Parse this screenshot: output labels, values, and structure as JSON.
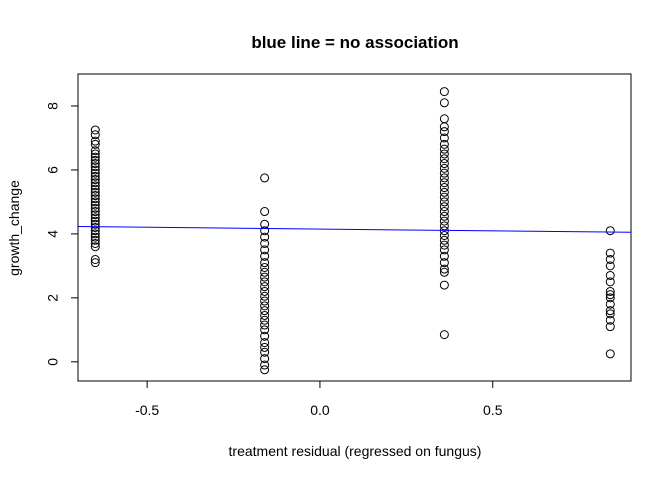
{
  "chart_data": {
    "type": "scatter",
    "title": "blue line = no association",
    "xlabel": "treatment residual (regressed on fungus)",
    "ylabel": "growth_change",
    "xlim": [
      -0.7,
      0.9
    ],
    "ylim": [
      -0.6,
      9.0
    ],
    "x_ticks": [
      -0.5,
      0.0,
      0.5
    ],
    "x_tick_labels": [
      "-0.5",
      "0.0",
      "0.5"
    ],
    "y_ticks": [
      0,
      2,
      4,
      6,
      8
    ],
    "y_tick_labels": [
      "0",
      "2",
      "4",
      "6",
      "8"
    ],
    "grid": false,
    "marker": "open-circle",
    "line_color": "#0000ff",
    "line": {
      "x": [
        -0.7,
        0.9
      ],
      "y": [
        4.23,
        4.05
      ]
    },
    "groups": [
      {
        "x": -0.65,
        "y": [
          3.1,
          3.2,
          3.6,
          3.7,
          3.8,
          3.9,
          4.0,
          4.1,
          4.2,
          4.3,
          4.4,
          4.5,
          4.6,
          4.7,
          4.8,
          4.9,
          5.0,
          5.1,
          5.2,
          5.3,
          5.4,
          5.5,
          5.6,
          5.7,
          5.8,
          5.9,
          6.0,
          6.1,
          6.2,
          6.3,
          6.4,
          6.5,
          6.6,
          6.8,
          6.9,
          7.1,
          7.25
        ]
      },
      {
        "x": -0.16,
        "y": [
          -0.25,
          -0.1,
          0.1,
          0.3,
          0.45,
          0.6,
          0.8,
          1.0,
          1.15,
          1.3,
          1.45,
          1.6,
          1.75,
          1.9,
          2.05,
          2.2,
          2.35,
          2.5,
          2.65,
          2.8,
          2.95,
          3.1,
          3.3,
          3.5,
          3.7,
          3.9,
          4.1,
          4.3,
          4.7,
          5.75
        ]
      },
      {
        "x": 0.36,
        "y": [
          0.85,
          2.4,
          2.8,
          2.9,
          3.1,
          3.3,
          3.5,
          3.65,
          3.8,
          3.95,
          4.1,
          4.25,
          4.4,
          4.55,
          4.7,
          4.85,
          5.0,
          5.15,
          5.3,
          5.45,
          5.6,
          5.75,
          5.9,
          6.05,
          6.2,
          6.35,
          6.5,
          6.65,
          6.8,
          7.0,
          7.2,
          7.35,
          7.6,
          8.1,
          8.45
        ]
      },
      {
        "x": 0.84,
        "y": [
          0.25,
          1.1,
          1.3,
          1.5,
          1.6,
          1.8,
          2.0,
          2.1,
          2.2,
          2.5,
          2.7,
          3.0,
          3.2,
          3.4,
          4.1
        ]
      }
    ]
  }
}
